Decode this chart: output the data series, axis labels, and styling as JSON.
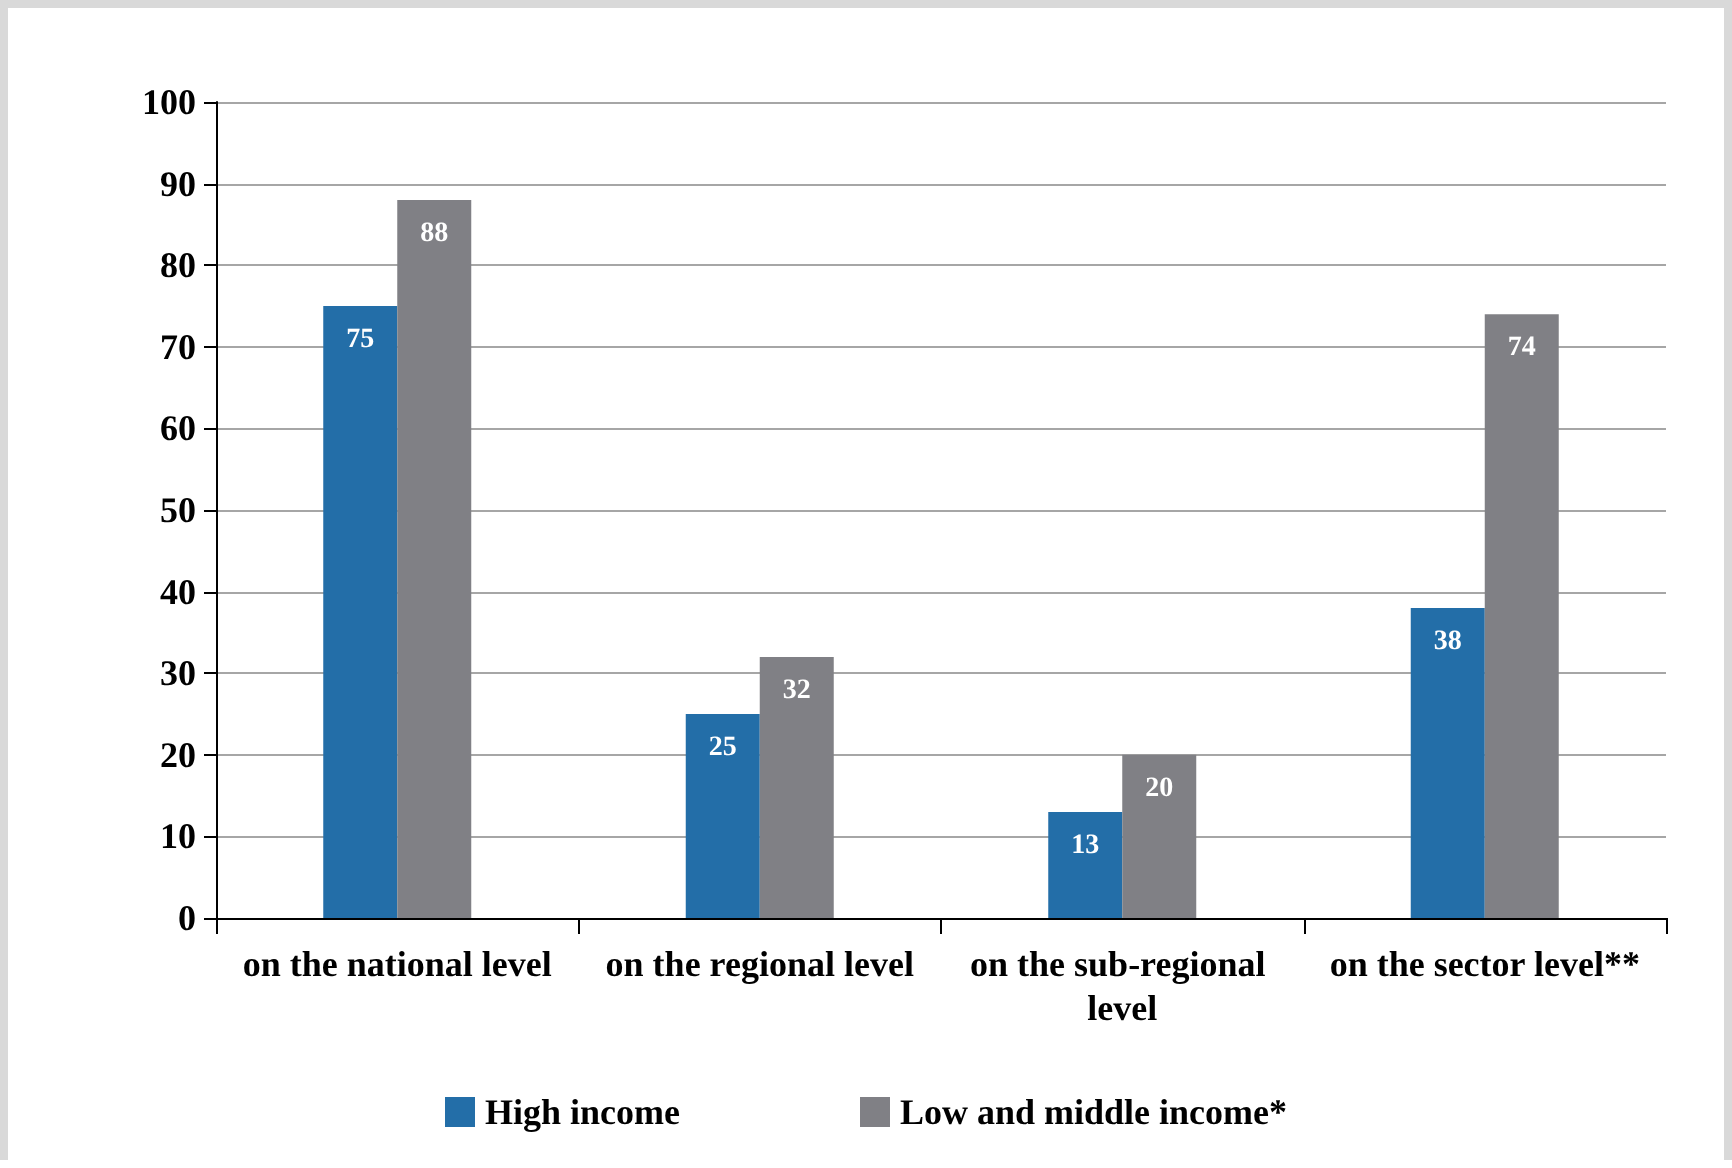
{
  "chart_data": {
    "type": "bar",
    "categories": [
      "on the national level",
      "on the regional level",
      "on the sub-regional level",
      "on the sector level**"
    ],
    "series": [
      {
        "name": "High income",
        "color": "#236ea8",
        "values": [
          75,
          25,
          13,
          38
        ]
      },
      {
        "name": "Low and middle income*",
        "color": "#808085",
        "values": [
          88,
          32,
          20,
          74
        ]
      }
    ],
    "ylim": [
      0,
      100
    ],
    "yticks": [
      0,
      10,
      20,
      30,
      40,
      50,
      60,
      70,
      80,
      90,
      100
    ],
    "grid": "y",
    "legend": "bottom",
    "data_labels": true
  }
}
